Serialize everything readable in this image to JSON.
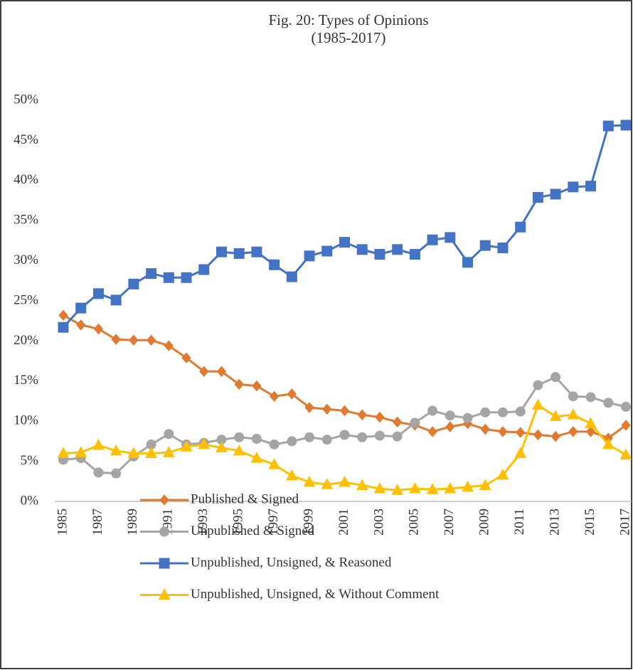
{
  "chart_data": {
    "type": "line",
    "title": "Fig. 20: Types of Opinions",
    "subtitle": "(1985-2017)",
    "categories": [
      "1985",
      null,
      "1987",
      null,
      "1989",
      null,
      "1991",
      null,
      "1993",
      null,
      "1995",
      null,
      "1997",
      null,
      "1999",
      null,
      "2001",
      null,
      "2003",
      null,
      "2005",
      null,
      "2007",
      null,
      "2009",
      null,
      "2011",
      null,
      "2013",
      null,
      "2015",
      null,
      "2017"
    ],
    "series": [
      {
        "name": "Published & Signed",
        "color": "#e07a30",
        "marker": "diamond",
        "values": [
          23.2,
          22.0,
          21.5,
          20.2,
          20.1,
          20.1,
          19.4,
          17.9,
          16.2,
          16.2,
          14.6,
          14.4,
          13.1,
          13.4,
          11.7,
          11.5,
          11.3,
          10.8,
          10.5,
          9.9,
          9.5,
          8.7,
          9.3,
          9.7,
          9.0,
          8.7,
          8.6,
          8.3,
          8.1,
          8.7,
          8.7,
          7.9,
          9.5
        ]
      },
      {
        "name": "Unpublished & Signed",
        "color": "#a5a5a5",
        "marker": "circle",
        "values": [
          5.2,
          5.4,
          3.6,
          3.5,
          5.6,
          7.1,
          8.4,
          7.1,
          7.3,
          7.7,
          8.0,
          7.8,
          7.1,
          7.5,
          8.0,
          7.7,
          8.3,
          8.0,
          8.2,
          8.1,
          9.8,
          11.3,
          10.7,
          10.4,
          11.1,
          11.1,
          11.2,
          14.5,
          15.5,
          13.1,
          13.0,
          12.3,
          11.8
        ]
      },
      {
        "name": "Unpublished, Unsigned, & Reasoned",
        "color": "#4472c4",
        "marker": "square",
        "values": [
          21.7,
          24.1,
          25.9,
          25.1,
          27.1,
          28.4,
          27.9,
          27.9,
          28.9,
          31.1,
          30.9,
          31.1,
          29.5,
          28.0,
          30.6,
          31.2,
          32.3,
          31.4,
          30.8,
          31.4,
          30.8,
          32.6,
          32.9,
          29.8,
          31.9,
          31.6,
          34.2,
          37.9,
          38.3,
          39.2,
          39.3,
          46.8,
          46.9
        ]
      },
      {
        "name": "Unpublished, Unsigned, & Without Comment",
        "color": "#ffc000",
        "marker": "triangle",
        "values": [
          6.0,
          6.1,
          7.0,
          6.3,
          6.0,
          6.0,
          6.1,
          6.8,
          7.1,
          6.7,
          6.3,
          5.4,
          4.6,
          3.2,
          2.4,
          2.1,
          2.4,
          2.0,
          1.6,
          1.4,
          1.6,
          1.5,
          1.6,
          1.8,
          2.0,
          3.3,
          6.0,
          12.0,
          10.6,
          10.8,
          9.7,
          7.1,
          5.8
        ]
      }
    ],
    "ylim": [
      0,
      50
    ],
    "yticks": [
      {
        "value": 0,
        "label": "0%"
      },
      {
        "value": 5,
        "label": "5%"
      },
      {
        "value": 10,
        "label": "10%"
      },
      {
        "value": 15,
        "label": "15%"
      },
      {
        "value": 20,
        "label": "20%"
      },
      {
        "value": 25,
        "label": "25%"
      },
      {
        "value": 30,
        "label": "30%"
      },
      {
        "value": 35,
        "label": "35%"
      },
      {
        "value": 40,
        "label": "40%"
      },
      {
        "value": 45,
        "label": "45%"
      },
      {
        "value": 50,
        "label": "50%"
      }
    ],
    "grid": false,
    "legend": "bottom"
  }
}
